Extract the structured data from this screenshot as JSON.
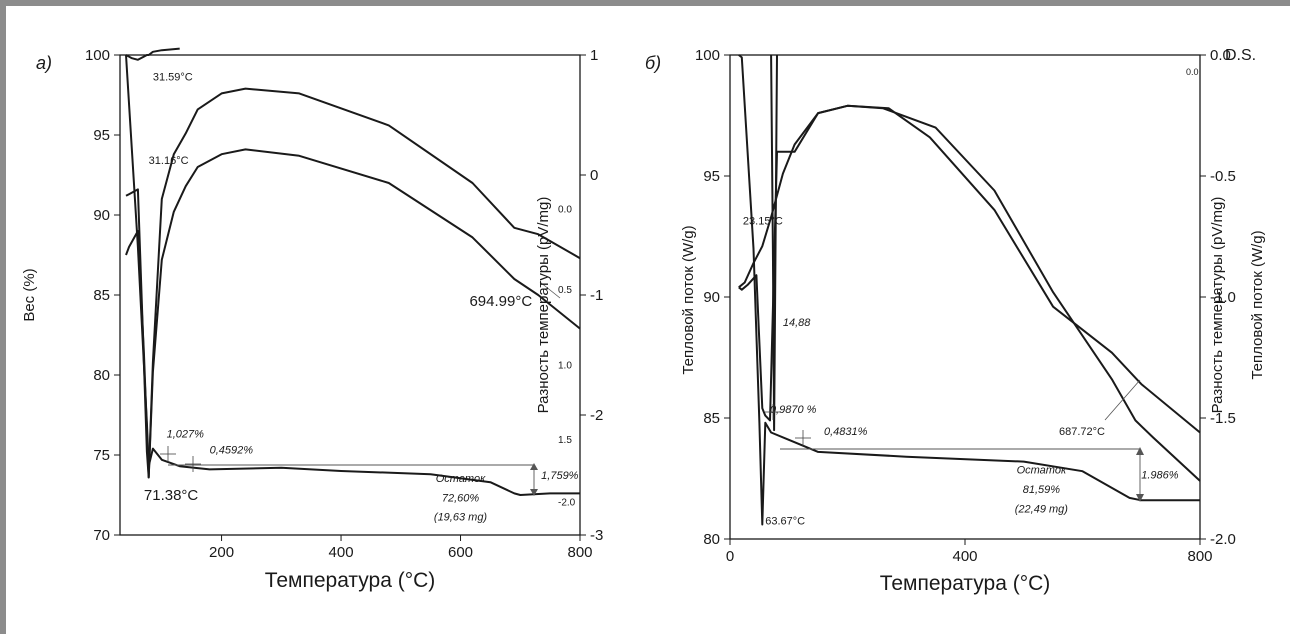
{
  "chart_data": [
    {
      "type": "line",
      "panel_label": "а)",
      "xlabel": "Температура (°C)",
      "ylabel_left": "Вес (%)",
      "ylabel_right": "Разность температуры (pV/mg)",
      "xlim": [
        30,
        800
      ],
      "ylim_left": [
        70,
        100
      ],
      "ylim_right": [
        -3,
        1
      ],
      "x_ticks": [
        "200",
        "400",
        "600",
        "800"
      ],
      "x_tick_values": [
        200,
        400,
        600,
        800
      ],
      "y_left_ticks": [
        "70",
        "75",
        "80",
        "85",
        "90",
        "95",
        "100"
      ],
      "y_left_tick_values": [
        70,
        75,
        80,
        85,
        90,
        95,
        100
      ],
      "y_right_ticks": [
        "-3",
        "-2",
        "-1",
        "0",
        "1"
      ],
      "y_right_tick_values": [
        -3,
        -2,
        -1,
        0,
        1
      ],
      "y_right_minor_ticks": [
        "0.0",
        "0.5",
        "1.0",
        "1.5",
        "-2.0"
      ],
      "y_right_minor_tick_values": [
        -0.28,
        -0.95,
        -1.58,
        -2.2,
        -2.72
      ],
      "series": [
        {
          "kind": "TG",
          "x": [
            40,
            60,
            75,
            78,
            85,
            100,
            130,
            180,
            300,
            400,
            550,
            650,
            690,
            700,
            750,
            800
          ],
          "y": [
            100,
            88,
            77,
            74.3,
            75.4,
            74.7,
            74.3,
            74.1,
            74.2,
            74.0,
            73.8,
            73.3,
            72.6,
            72.5,
            72.6,
            72.6
          ]
        },
        {
          "kind": "DTA-upper",
          "x": [
            40,
            45,
            60,
            70,
            75,
            78,
            85,
            100,
            120,
            140,
            160,
            200,
            240,
            330,
            480,
            620,
            690,
            730,
            800
          ],
          "y": [
            91.2,
            91.3,
            91.6,
            80.8,
            75.2,
            73.6,
            80.8,
            91.0,
            93.8,
            95.1,
            96.6,
            97.6,
            97.9,
            97.6,
            95.6,
            92.0,
            89.2,
            88.8,
            87.3
          ]
        },
        {
          "kind": "DTA-lower",
          "x": [
            40,
            45,
            60,
            70,
            75,
            78,
            85,
            100,
            120,
            140,
            160,
            200,
            240,
            330,
            480,
            620,
            690,
            730,
            800
          ],
          "y": [
            87.5,
            88.0,
            89.0,
            81.4,
            76.5,
            73.6,
            80.2,
            87.2,
            90.2,
            91.8,
            93.0,
            93.8,
            94.1,
            93.7,
            92.0,
            88.6,
            86.0,
            85.0,
            82.9
          ]
        },
        {
          "kind": "DTG",
          "x": [
            40,
            50,
            60,
            70,
            75,
            78,
            85,
            100,
            130
          ],
          "y": [
            100,
            99.8,
            99.7,
            99.9,
            100,
            100,
            100.2,
            100.3,
            100.4
          ]
        }
      ],
      "annotations": [
        {
          "text": "31.59°C",
          "x": 85,
          "y": 98.4
        },
        {
          "text": "31.16°C",
          "x": 78,
          "y": 93.2
        },
        {
          "text": "71.38°C",
          "x": 70,
          "y": 72.2
        },
        {
          "text": "694.99°C",
          "x": 615,
          "y": 84.3
        },
        {
          "text": "1,027%",
          "x": 108,
          "y": 76.1
        },
        {
          "text": "0,4592%",
          "x": 180,
          "y": 75.1
        },
        {
          "text": "1,759%",
          "x": 735,
          "y": 73.5
        },
        {
          "text": "Остаток",
          "x": 600,
          "y": 73.3
        },
        {
          "text": "72,60%",
          "x": 600,
          "y": 72.1
        },
        {
          "text": "(19,63 mg)",
          "x": 600,
          "y": 70.9
        }
      ]
    },
    {
      "type": "line",
      "panel_label": "б)",
      "xlabel": "Температура (°C)",
      "ylabel_left": "Тепловой поток (W/g)",
      "ylabel_right_inner": "Разность температуры (pV/mg)",
      "ylabel_right_outer": "Тепловой поток (W/g)",
      "header_right": "D.S.",
      "xlim": [
        0,
        800
      ],
      "ylim_left": [
        80,
        100
      ],
      "ylim_right": [
        -2.0,
        0.0
      ],
      "x_ticks": [
        "0",
        "400",
        "800"
      ],
      "x_tick_values": [
        0,
        400,
        800
      ],
      "y_left_ticks": [
        "80",
        "85",
        "90",
        "95",
        "100"
      ],
      "y_left_tick_values": [
        80,
        85,
        90,
        95,
        100
      ],
      "y_right_ticks": [
        "-2.0",
        "-1.5",
        "-1.0",
        "-0.5",
        "0.0"
      ],
      "y_right_tick_values": [
        -2.0,
        -1.5,
        -1.0,
        -0.5,
        0.0
      ],
      "y_right_inner_ticks": [
        "0.0"
      ],
      "series": [
        {
          "kind": "TG",
          "x": [
            15,
            20,
            40,
            50,
            55,
            60,
            70,
            100,
            150,
            300,
            500,
            600,
            680,
            700,
            750,
            800
          ],
          "y": [
            100,
            99.9,
            92,
            84.8,
            80.6,
            84.8,
            84.4,
            84.1,
            83.6,
            83.4,
            83.2,
            82.8,
            81.7,
            81.6,
            81.6,
            81.6
          ]
        },
        {
          "kind": "DTA",
          "x": [
            15,
            25,
            40,
            55,
            70,
            90,
            110,
            150,
            200,
            260,
            350,
            450,
            550,
            650,
            690,
            720,
            800
          ],
          "y": [
            90.4,
            90.6,
            91.4,
            92.1,
            93.3,
            95.1,
            96.3,
            97.6,
            97.9,
            97.8,
            97.0,
            94.4,
            90.2,
            86.6,
            84.9,
            84.2,
            82.4
          ]
        },
        {
          "kind": "DTG",
          "x": [
            15,
            20,
            30,
            45,
            55,
            60,
            68,
            80,
            110,
            150,
            200,
            270,
            340,
            450,
            550,
            650,
            700,
            800
          ],
          "y": [
            90.4,
            90.3,
            90.5,
            90.9,
            85.4,
            85.1,
            84.9,
            96.0,
            96.0,
            97.6,
            97.9,
            97.8,
            96.6,
            93.6,
            89.6,
            87.7,
            86.4,
            84.4
          ]
        },
        {
          "kind": "spike",
          "x": [
            70,
            73,
            75,
            80
          ],
          "y": [
            100,
            92,
            84.5,
            100
          ]
        }
      ],
      "annotations": [
        {
          "text": "23.15°C",
          "x": 22,
          "y": 93.0
        },
        {
          "text": "14,88",
          "x": 90,
          "y": 88.8
        },
        {
          "text": "0,9870 %",
          "x": 68,
          "y": 85.2
        },
        {
          "text": "0,4831%",
          "x": 160,
          "y": 84.3
        },
        {
          "text": "687.72°C",
          "x": 560,
          "y": 84.3
        },
        {
          "text": "1.986%",
          "x": 700,
          "y": 82.5
        },
        {
          "text": "63.67°C",
          "x": 60,
          "y": 80.6
        },
        {
          "text": "Остаток",
          "x": 530,
          "y": 82.7
        },
        {
          "text": "81,59%",
          "x": 530,
          "y": 81.9
        },
        {
          "text": "(22,49 mg)",
          "x": 530,
          "y": 81.1
        }
      ]
    }
  ]
}
